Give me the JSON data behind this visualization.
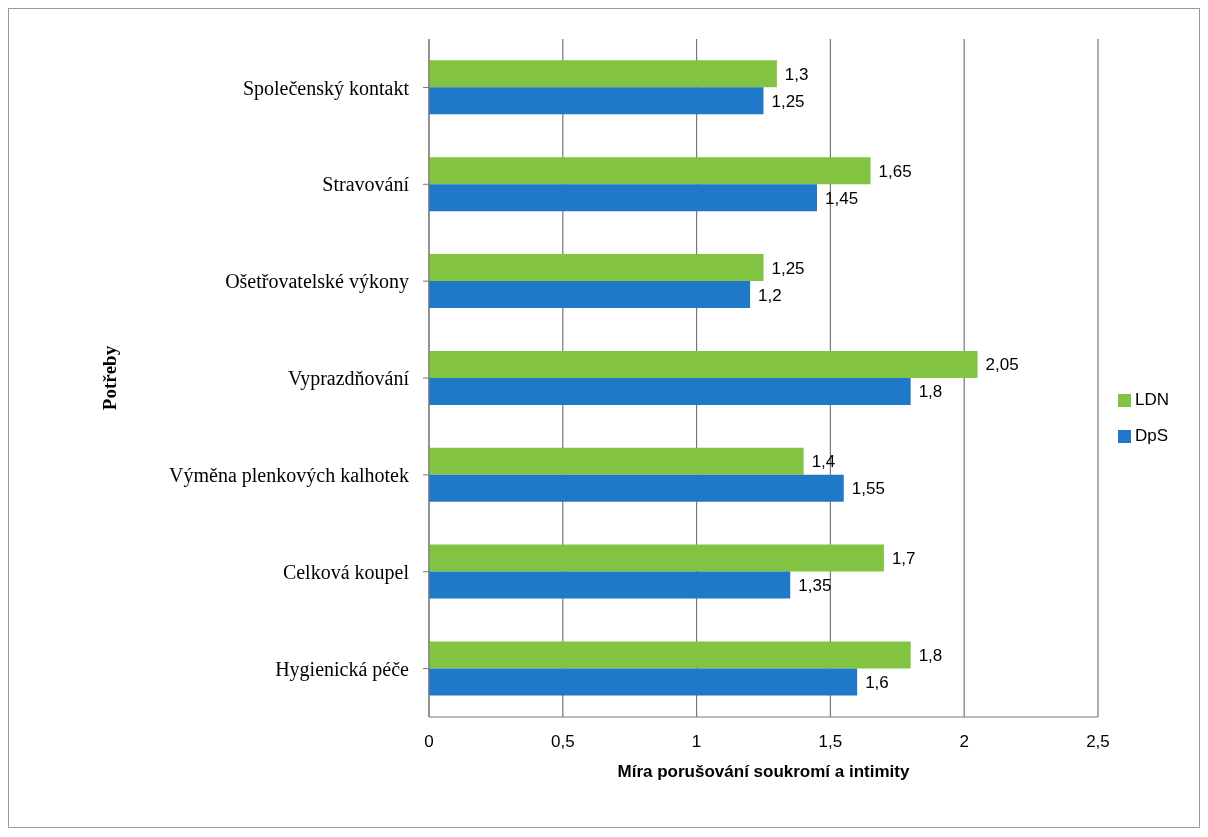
{
  "chart_data": {
    "type": "bar",
    "orientation": "horizontal",
    "ylabel": "Potřeby",
    "xlabel": "Míra porušování soukromí a intimity",
    "categories": [
      "Společenský kontakt",
      "Stravování",
      "Ošetřovatelské výkony",
      "Vyprazdňování",
      "Výměna plenkových kalhotek",
      "Celková koupel",
      "Hygienická péče"
    ],
    "series": [
      {
        "name": "LDN",
        "color": "#82c341",
        "values": [
          1.3,
          1.65,
          1.25,
          2.05,
          1.4,
          1.7,
          1.8
        ],
        "value_labels": [
          "1,3",
          "1,65",
          "1,25",
          "2,05",
          "1,4",
          "1,7",
          "1,8"
        ]
      },
      {
        "name": "DpS",
        "color": "#1f78c8",
        "values": [
          1.25,
          1.45,
          1.2,
          1.8,
          1.55,
          1.35,
          1.6
        ],
        "value_labels": [
          "1,25",
          "1,45",
          "1,2",
          "1,8",
          "1,55",
          "1,35",
          "1,6"
        ]
      }
    ],
    "xlim": [
      0,
      2.5
    ],
    "xticks": [
      0,
      {
        "value": 0.5,
        "label": "0,5"
      },
      1,
      {
        "value": 1.5,
        "label": "1,5"
      },
      2,
      {
        "value": 2.5,
        "label": "2,5"
      }
    ],
    "grid": "x",
    "legend": "right"
  }
}
